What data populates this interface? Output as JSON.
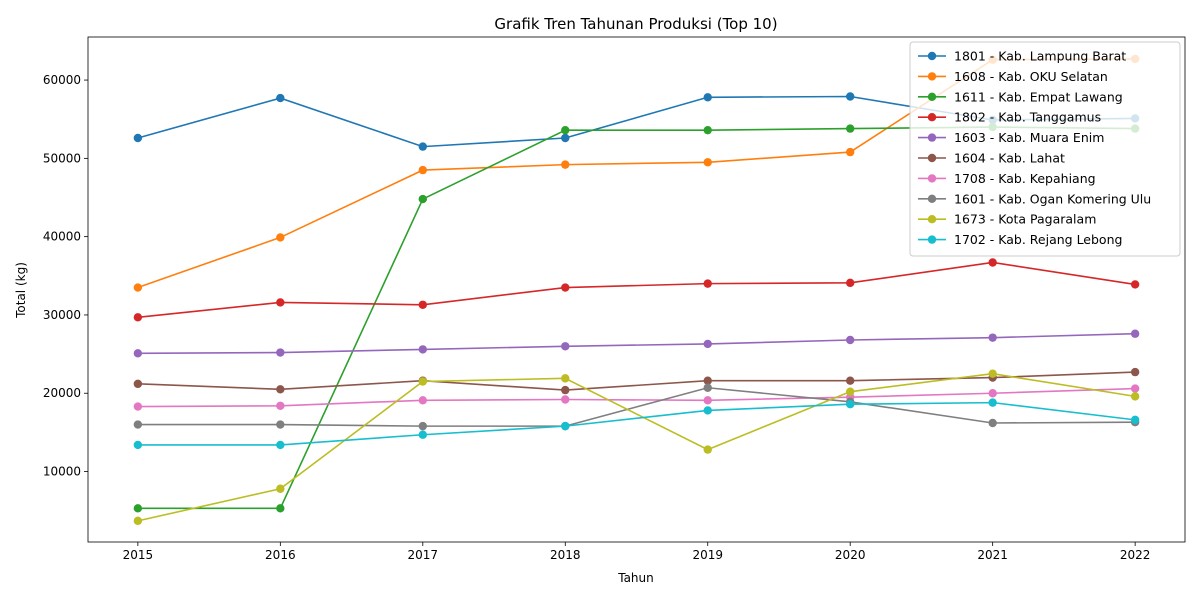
{
  "chart_data": {
    "type": "line",
    "title": "Grafik Tren Tahunan Produksi (Top 10)",
    "xlabel": "Tahun",
    "ylabel": "Total (kg)",
    "x": [
      2015,
      2016,
      2017,
      2018,
      2019,
      2020,
      2021,
      2022
    ],
    "xlim": [
      2014.65,
      2022.35
    ],
    "ylim": [
      1000,
      65500
    ],
    "yticks": [
      10000,
      20000,
      30000,
      40000,
      50000,
      60000
    ],
    "grid": false,
    "legend_position": "top-right",
    "series": [
      {
        "name": "1801 - Kab. Lampung Barat",
        "color": "#1f77b4",
        "values": [
          52600,
          57700,
          51500,
          52600,
          57800,
          57900,
          54900,
          55100
        ]
      },
      {
        "name": "1608 - Kab. OKU Selatan",
        "color": "#ff7f0e",
        "values": [
          33500,
          39900,
          48500,
          49200,
          49500,
          50800,
          62600,
          62700
        ]
      },
      {
        "name": "1611 - Kab. Empat Lawang",
        "color": "#2ca02c",
        "values": [
          5300,
          5300,
          44800,
          53600,
          53600,
          53800,
          54000,
          53800
        ]
      },
      {
        "name": "1802 - Kab. Tanggamus",
        "color": "#d62728",
        "values": [
          29700,
          31600,
          31300,
          33500,
          34000,
          34100,
          36700,
          33900
        ]
      },
      {
        "name": "1603 - Kab. Muara Enim",
        "color": "#9467bd",
        "values": [
          25100,
          25200,
          25600,
          26000,
          26300,
          26800,
          27100,
          27600
        ]
      },
      {
        "name": "1604 - Kab. Lahat",
        "color": "#8c564b",
        "values": [
          21200,
          20500,
          21600,
          20400,
          21600,
          21600,
          22000,
          22700
        ]
      },
      {
        "name": "1708 - Kab. Kepahiang",
        "color": "#e377c2",
        "values": [
          18300,
          18400,
          19100,
          19200,
          19100,
          19500,
          20000,
          20600
        ]
      },
      {
        "name": "1601 - Kab. Ogan Komering Ulu",
        "color": "#7f7f7f",
        "values": [
          16000,
          16000,
          15800,
          15800,
          20700,
          18900,
          16200,
          16300
        ]
      },
      {
        "name": "1673 - Kota Pagaralam",
        "color": "#bcbd22",
        "values": [
          3700,
          7800,
          21500,
          21900,
          12800,
          20200,
          22500,
          19600
        ]
      },
      {
        "name": "1702 - Kab. Rejang Lebong",
        "color": "#17becf",
        "values": [
          13400,
          13400,
          14700,
          15800,
          17800,
          18600,
          18800,
          16600
        ]
      }
    ]
  }
}
